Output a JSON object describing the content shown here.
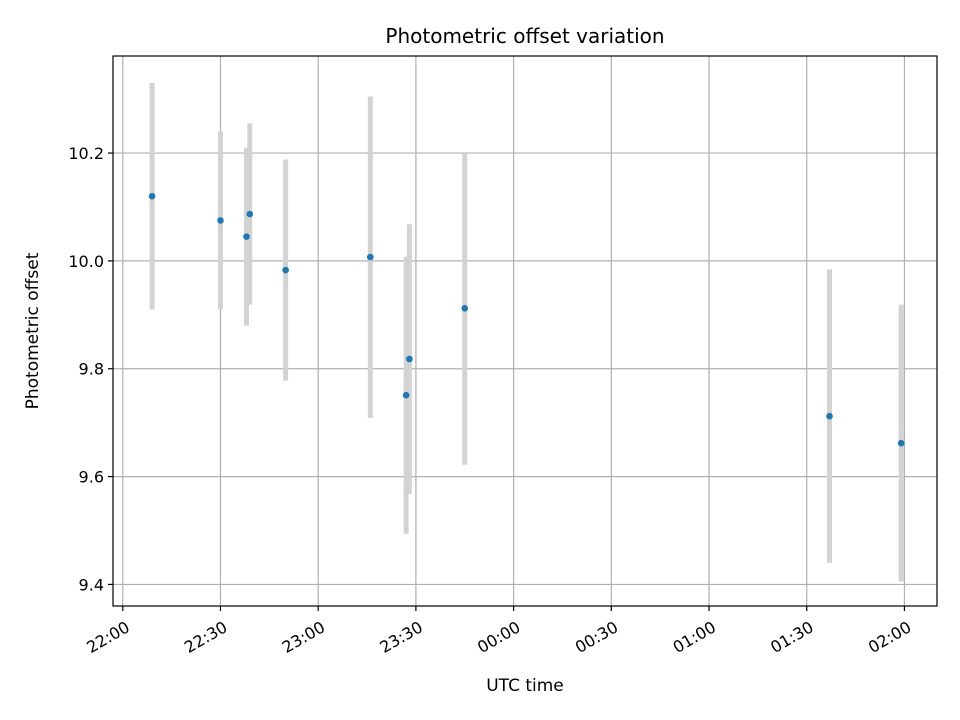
{
  "chart_data": {
    "type": "scatter",
    "title": "Photometric offset variation",
    "xlabel": "UTC time",
    "ylabel": "Photometric offset",
    "x_ticks": [
      "22:00",
      "22:30",
      "23:00",
      "23:30",
      "00:00",
      "00:30",
      "01:00",
      "01:30",
      "02:00"
    ],
    "y_ticks": [
      "9.4",
      "9.6",
      "9.8",
      "10.0",
      "10.2"
    ],
    "xlim": [
      "21:57",
      "02:10"
    ],
    "ylim": [
      9.36,
      10.38
    ],
    "grid": true,
    "point_color": "#1f77b4",
    "errorbar_color": "#d3d3d3",
    "points": [
      {
        "time": "22:09",
        "value": 10.12,
        "err_low": 0.21,
        "err_high": 0.21
      },
      {
        "time": "22:30",
        "value": 10.075,
        "err_low": 0.165,
        "err_high": 0.165
      },
      {
        "time": "22:38",
        "value": 10.045,
        "err_low": 0.165,
        "err_high": 0.165
      },
      {
        "time": "22:39",
        "value": 10.087,
        "err_low": 0.168,
        "err_high": 0.168
      },
      {
        "time": "22:50",
        "value": 9.983,
        "err_low": 0.205,
        "err_high": 0.205
      },
      {
        "time": "23:16",
        "value": 10.007,
        "err_low": 0.298,
        "err_high": 0.298
      },
      {
        "time": "23:27",
        "value": 9.751,
        "err_low": 0.257,
        "err_high": 0.257
      },
      {
        "time": "23:28",
        "value": 9.818,
        "err_low": 0.25,
        "err_high": 0.25
      },
      {
        "time": "23:45",
        "value": 9.912,
        "err_low": 0.29,
        "err_high": 0.29
      },
      {
        "time": "01:37",
        "value": 9.712,
        "err_low": 0.272,
        "err_high": 0.272
      },
      {
        "time": "01:59",
        "value": 9.662,
        "err_low": 0.257,
        "err_high": 0.257
      }
    ]
  }
}
